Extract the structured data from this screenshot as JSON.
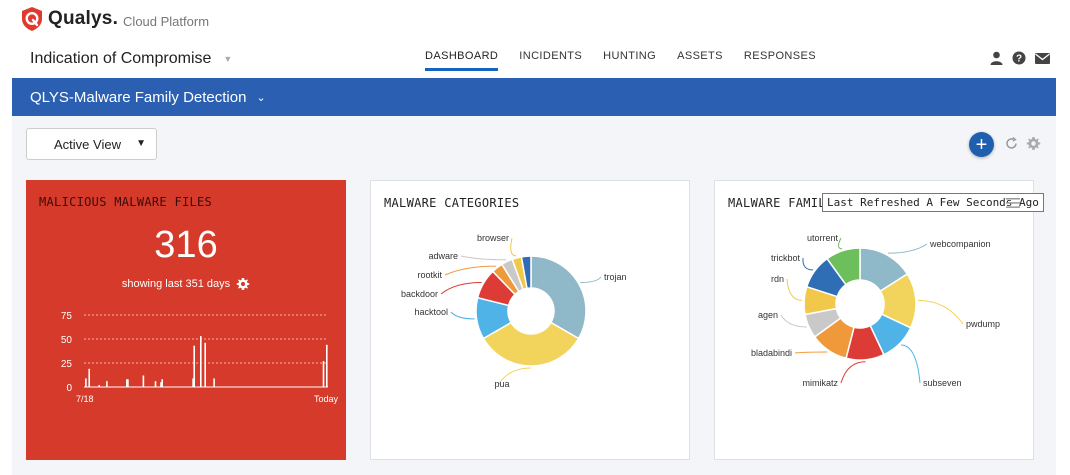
{
  "brand": {
    "name": "Qualys.",
    "sub": "Cloud Platform"
  },
  "app": {
    "title": "Indication of Compromise"
  },
  "nav": {
    "items": [
      {
        "label": "DASHBOARD",
        "active": true
      },
      {
        "label": "INCIDENTS",
        "active": false
      },
      {
        "label": "HUNTING",
        "active": false
      },
      {
        "label": "ASSETS",
        "active": false
      },
      {
        "label": "RESPONSES",
        "active": false
      }
    ]
  },
  "top_icons": [
    "user-icon",
    "help-icon",
    "mail-icon"
  ],
  "dashboard": {
    "name": "QLYS-Malware Family Detection"
  },
  "view": {
    "selected": "Active View"
  },
  "colors": {
    "banner": "#2a5fb1",
    "red_card": "#d63a2a",
    "accent": "#1565c0"
  },
  "widgets": {
    "malicious": {
      "title": "MALICIOUS MALWARE FILES",
      "count": "316",
      "subtitle": "showing last 351 days",
      "y_ticks": [
        "75",
        "50",
        "25",
        "0"
      ],
      "x_start": "7/18",
      "x_end": "Today"
    },
    "categories": {
      "title": "MALWARE CATEGORIES"
    },
    "families": {
      "title": "MALWARE FAMILI",
      "tooltip": "Last Refreshed A Few Seconds Ago"
    }
  },
  "chart_data": [
    {
      "type": "bar",
      "title": "MALICIOUS MALWARE FILES",
      "x_labels": [
        "7/18",
        "Today"
      ],
      "ylim": [
        0,
        75
      ],
      "y_ticks": [
        0,
        25,
        50,
        75
      ],
      "values": [
        0,
        9,
        0,
        0,
        19,
        0,
        0,
        0,
        0,
        0,
        0,
        0,
        0,
        2,
        0,
        0,
        0,
        0,
        0,
        0,
        6,
        0,
        0,
        0,
        0,
        0,
        0,
        0,
        0,
        0,
        0,
        0,
        0,
        0,
        0,
        0,
        0,
        0,
        8,
        8,
        0,
        0,
        0,
        0,
        0,
        0,
        0,
        0,
        0,
        0,
        0,
        0,
        0,
        12,
        0,
        0,
        0,
        0,
        0,
        0,
        0,
        0,
        0,
        0,
        6,
        0,
        0,
        0,
        0,
        5,
        8,
        0,
        0,
        0,
        0,
        0,
        0,
        0,
        0,
        0,
        0,
        0,
        0,
        0,
        0,
        0,
        0,
        0,
        0,
        0,
        0,
        0,
        0,
        0,
        0,
        0,
        0,
        0,
        9,
        43,
        0,
        0,
        0,
        0,
        0,
        53,
        0,
        0,
        0,
        46,
        0,
        0,
        0,
        0,
        0,
        0,
        0,
        9,
        0,
        0,
        0,
        0,
        0,
        0,
        0,
        0,
        0,
        0,
        0,
        0,
        0,
        0,
        0,
        0,
        0,
        0,
        0,
        0,
        0,
        0,
        0,
        0,
        0,
        0,
        0,
        0,
        0,
        0,
        0,
        0,
        0,
        0,
        0,
        0,
        0,
        0,
        0,
        0,
        0,
        0,
        0,
        0,
        0,
        0,
        0,
        0,
        0,
        0,
        0,
        0,
        0,
        0,
        0,
        0,
        0,
        0,
        0,
        0,
        0,
        0,
        0,
        0,
        0,
        0,
        0,
        0,
        0,
        0,
        0,
        0,
        0,
        0,
        0,
        0,
        0,
        0,
        0,
        0,
        0,
        0,
        0,
        0,
        0,
        0,
        0,
        0,
        0,
        0,
        0,
        0,
        0,
        0,
        0,
        0,
        0,
        0,
        27,
        0,
        0,
        44
      ],
      "grid": true
    },
    {
      "type": "pie",
      "title": "MALWARE CATEGORIES",
      "series": [
        {
          "label": "trojan",
          "value": 30,
          "color": "#8fb8c8"
        },
        {
          "label": "pua",
          "value": 30,
          "color": "#f2d45c"
        },
        {
          "label": "hacktool",
          "value": 11,
          "color": "#4fb3e8"
        },
        {
          "label": "backdoor",
          "value": 8,
          "color": "#dd3b35"
        },
        {
          "label": "rootkit",
          "value": 3,
          "color": "#f0993a"
        },
        {
          "label": "adware",
          "value": 3,
          "color": "#c9c9c9"
        },
        {
          "label": "browser",
          "value": 2.5,
          "color": "#f2c84b"
        },
        {
          "label": "",
          "value": 2.5,
          "color": "#2f6db5"
        }
      ]
    },
    {
      "type": "pie",
      "title": "MALWARE FAMILI",
      "series": [
        {
          "label": "webcompanion",
          "value": 16,
          "color": "#8fb8c8"
        },
        {
          "label": "pwdump",
          "value": 16,
          "color": "#f2d45c"
        },
        {
          "label": "subseven",
          "value": 11,
          "color": "#4fb3e8"
        },
        {
          "label": "mimikatz",
          "value": 11,
          "color": "#dd3b35"
        },
        {
          "label": "bladabindi",
          "value": 11,
          "color": "#f0993a"
        },
        {
          "label": "agen",
          "value": 7,
          "color": "#c9c9c9"
        },
        {
          "label": "rdn",
          "value": 8,
          "color": "#f2c84b"
        },
        {
          "label": "trickbot",
          "value": 10,
          "color": "#2f6db5"
        },
        {
          "label": "utorrent",
          "value": 10,
          "color": "#6cbf5b"
        }
      ]
    }
  ]
}
